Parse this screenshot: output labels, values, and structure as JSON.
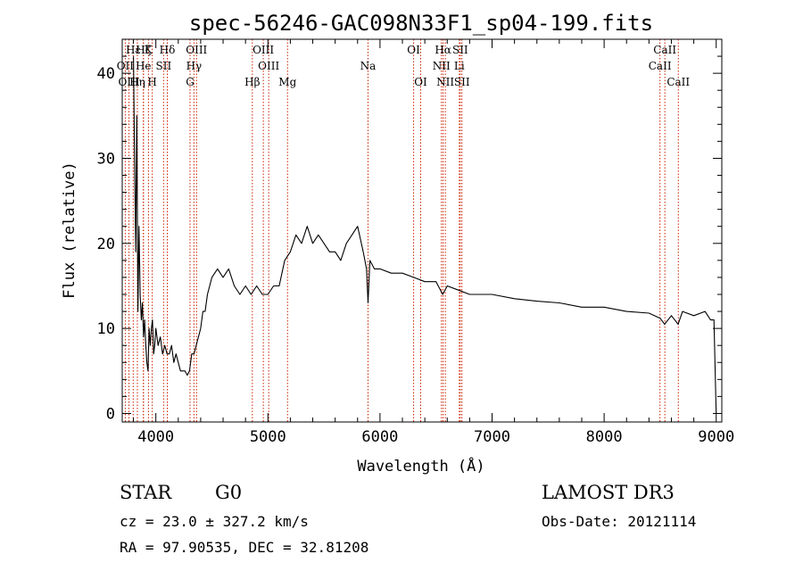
{
  "title": "spec-56246-GAC098N33F1_sp04-199.fits",
  "footer": {
    "class": "STAR",
    "subclass": "G0",
    "survey": "LAMOST DR3",
    "cz": "cz = 23.0 ± 327.2 km/s",
    "obs_date": "Obs-Date: 20121114",
    "coords": "RA =  97.90535, DEC =  32.81208"
  },
  "chart_data": {
    "type": "line",
    "title": "spec-56246-GAC098N33F1_sp04-199.fits",
    "xlabel": "Wavelength (Å)",
    "ylabel": "Flux (relative)",
    "xlim": [
      3700,
      9050
    ],
    "ylim": [
      -1,
      44
    ],
    "xticks": [
      4000,
      5000,
      6000,
      7000,
      8000,
      9000
    ],
    "yticks": [
      0,
      10,
      20,
      30,
      40
    ],
    "line_color": "#000000",
    "marker_color": "#cc2200",
    "emission_lines": [
      {
        "label": "Hε",
        "wave": 3798,
        "row": 0
      },
      {
        "label": "OII",
        "wave": 3727,
        "row": 1
      },
      {
        "label": "OIII",
        "wave": 3760,
        "row": 2
      },
      {
        "label": "Hζ",
        "wave": 3889,
        "row": 0
      },
      {
        "label": "K",
        "wave": 3934,
        "row": 0
      },
      {
        "label": "He",
        "wave": 3889,
        "row": 1
      },
      {
        "label": "SII",
        "wave": 4069,
        "row": 1
      },
      {
        "label": "Hη",
        "wave": 3835,
        "row": 2
      },
      {
        "label": "H",
        "wave": 3968,
        "row": 2
      },
      {
        "label": "Hδ",
        "wave": 4102,
        "row": 0
      },
      {
        "label": "OIII",
        "wave": 4363,
        "row": 0
      },
      {
        "label": "Hγ",
        "wave": 4340,
        "row": 1
      },
      {
        "label": "G",
        "wave": 4305,
        "row": 2
      },
      {
        "label": "OIII",
        "wave": 4959,
        "row": 0
      },
      {
        "label": "OIII",
        "wave": 5007,
        "row": 1
      },
      {
        "label": "Hβ",
        "wave": 4861,
        "row": 2
      },
      {
        "label": "Mg",
        "wave": 5175,
        "row": 2
      },
      {
        "label": "Na",
        "wave": 5893,
        "row": 1
      },
      {
        "label": "OI",
        "wave": 6300,
        "row": 0
      },
      {
        "label": "OI",
        "wave": 6363,
        "row": 2
      },
      {
        "label": "Hα",
        "wave": 6563,
        "row": 0
      },
      {
        "label": "SII",
        "wave": 6716,
        "row": 0
      },
      {
        "label": "NII",
        "wave": 6548,
        "row": 1
      },
      {
        "label": "Li",
        "wave": 6708,
        "row": 1
      },
      {
        "label": "NII",
        "wave": 6583,
        "row": 2
      },
      {
        "label": "SII",
        "wave": 6731,
        "row": 2
      },
      {
        "label": "CaII",
        "wave": 8542,
        "row": 0
      },
      {
        "label": "CaII",
        "wave": 8498,
        "row": 1
      },
      {
        "label": "CaII",
        "wave": 8662,
        "row": 2
      }
    ],
    "x": [
      3800,
      3810,
      3820,
      3830,
      3840,
      3850,
      3860,
      3870,
      3880,
      3890,
      3900,
      3910,
      3920,
      3930,
      3940,
      3950,
      3960,
      3970,
      3980,
      3990,
      4000,
      4020,
      4040,
      4060,
      4080,
      4100,
      4120,
      4140,
      4160,
      4180,
      4200,
      4220,
      4240,
      4260,
      4280,
      4300,
      4320,
      4340,
      4360,
      4380,
      4400,
      4420,
      4440,
      4460,
      4480,
      4500,
      4550,
      4600,
      4650,
      4700,
      4750,
      4800,
      4850,
      4900,
      4950,
      5000,
      5050,
      5100,
      5150,
      5200,
      5250,
      5300,
      5350,
      5400,
      5450,
      5500,
      5550,
      5600,
      5650,
      5700,
      5750,
      5800,
      5850,
      5880,
      5893,
      5910,
      5950,
      6000,
      6100,
      6200,
      6300,
      6400,
      6500,
      6560,
      6600,
      6700,
      6800,
      6900,
      7000,
      7200,
      7400,
      7600,
      7800,
      8000,
      8200,
      8400,
      8500,
      8540,
      8600,
      8660,
      8700,
      8800,
      8900,
      8950,
      8980,
      9000
    ],
    "values": [
      42,
      30,
      19,
      35,
      12,
      22,
      14,
      11,
      13,
      9,
      11,
      8,
      6,
      5,
      10,
      8,
      10,
      11,
      7,
      8,
      10,
      8,
      9,
      7,
      8,
      7,
      7,
      8,
      6,
      7,
      6,
      5,
      5,
      5,
      4.5,
      5,
      7,
      7,
      8,
      9,
      10,
      12,
      12,
      14,
      15,
      16,
      17,
      16,
      17,
      15,
      14,
      15,
      14,
      15,
      14,
      14,
      15,
      15,
      18,
      19,
      21,
      20,
      22,
      20,
      21,
      20,
      19,
      19,
      18,
      20,
      21,
      22,
      19,
      17,
      13,
      18,
      17,
      17,
      16.5,
      16.5,
      16,
      15.5,
      15.5,
      14,
      15,
      14.5,
      14,
      14,
      14,
      13.5,
      13.2,
      13,
      12.5,
      12.5,
      12,
      11.8,
      11.2,
      10.5,
      11.5,
      10.5,
      12,
      11.5,
      12,
      11,
      11,
      0
    ]
  }
}
